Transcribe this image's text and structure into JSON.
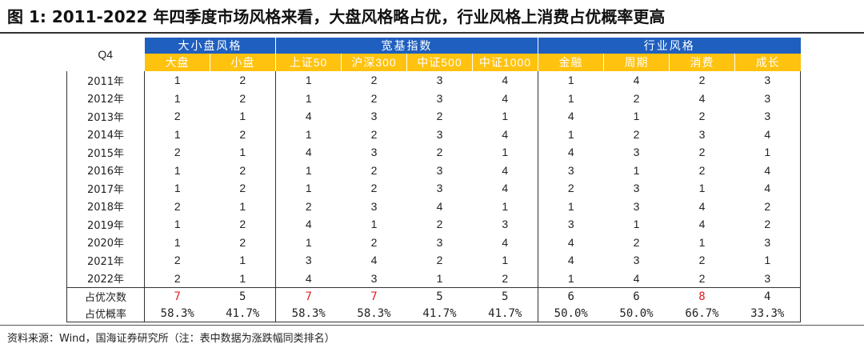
{
  "figure": {
    "title": "图 1:  2011-2022 年四季度市场风格来看，大盘风格略占优，行业风格上消费占优概率更高",
    "source": "资料来源：Wind，国海证券研究所（注：表中数据为涨跌幅同类排名）"
  },
  "table": {
    "corner_label": "Q4",
    "groups": [
      "大小盘风格",
      "宽基指数",
      "行业风格"
    ],
    "columns": [
      "大盘",
      "小盘",
      "上证50",
      "沪深300",
      "中证500",
      "中证1000",
      "金融",
      "周期",
      "消费",
      "成长"
    ],
    "rows": [
      {
        "year": "2011年",
        "values": [
          "1",
          "2",
          "1",
          "2",
          "3",
          "4",
          "1",
          "4",
          "2",
          "3"
        ]
      },
      {
        "year": "2012年",
        "values": [
          "1",
          "2",
          "1",
          "2",
          "3",
          "4",
          "1",
          "2",
          "4",
          "3"
        ]
      },
      {
        "year": "2013年",
        "values": [
          "2",
          "1",
          "4",
          "3",
          "2",
          "1",
          "4",
          "1",
          "2",
          "3"
        ]
      },
      {
        "year": "2014年",
        "values": [
          "1",
          "2",
          "1",
          "2",
          "3",
          "4",
          "1",
          "2",
          "3",
          "4"
        ]
      },
      {
        "year": "2015年",
        "values": [
          "2",
          "1",
          "4",
          "3",
          "2",
          "1",
          "4",
          "3",
          "2",
          "1"
        ]
      },
      {
        "year": "2016年",
        "values": [
          "1",
          "2",
          "1",
          "2",
          "3",
          "4",
          "3",
          "1",
          "2",
          "4"
        ]
      },
      {
        "year": "2017年",
        "values": [
          "1",
          "2",
          "1",
          "2",
          "3",
          "4",
          "2",
          "3",
          "1",
          "4"
        ]
      },
      {
        "year": "2018年",
        "values": [
          "2",
          "1",
          "2",
          "3",
          "4",
          "1",
          "1",
          "3",
          "4",
          "2"
        ]
      },
      {
        "year": "2019年",
        "values": [
          "1",
          "2",
          "4",
          "1",
          "2",
          "3",
          "3",
          "1",
          "4",
          "2"
        ]
      },
      {
        "year": "2020年",
        "values": [
          "1",
          "2",
          "1",
          "2",
          "3",
          "4",
          "4",
          "2",
          "1",
          "3"
        ]
      },
      {
        "year": "2021年",
        "values": [
          "2",
          "1",
          "3",
          "4",
          "2",
          "1",
          "4",
          "3",
          "2",
          "1"
        ]
      },
      {
        "year": "2022年",
        "values": [
          "2",
          "1",
          "4",
          "3",
          "1",
          "2",
          "1",
          "4",
          "2",
          "3"
        ]
      }
    ],
    "summary": [
      {
        "label": "占优次数",
        "values": [
          "7",
          "5",
          "7",
          "7",
          "5",
          "5",
          "6",
          "6",
          "8",
          "4"
        ]
      },
      {
        "label": "占优概率",
        "values": [
          "58.3%",
          "41.7%",
          "58.3%",
          "58.3%",
          "41.7%",
          "41.7%",
          "50.0%",
          "50.0%",
          "66.7%",
          "33.3%"
        ]
      }
    ],
    "highlight_color": "#e0201f",
    "header_colors": {
      "group": "#1f5fbf",
      "column": "#ffc20e"
    }
  }
}
